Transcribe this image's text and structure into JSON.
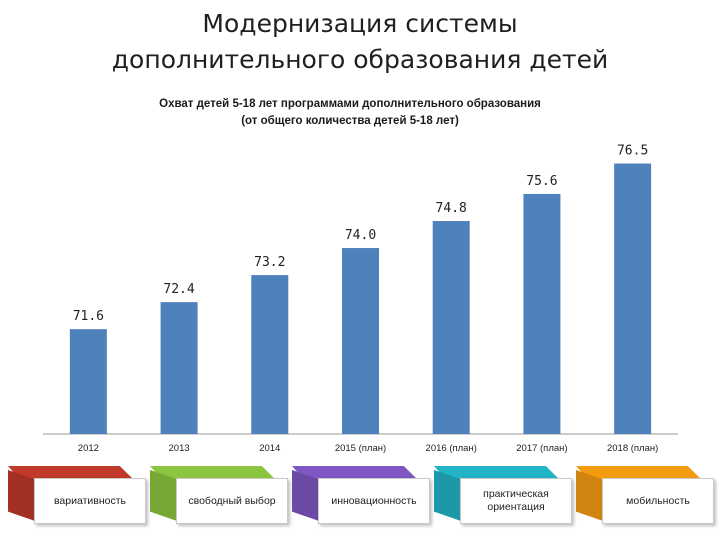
{
  "slide": {
    "title_line1": "Модернизация системы",
    "title_line2": "дополнительного образования детей"
  },
  "chart_data": {
    "type": "bar",
    "title_line1": "Охват детей 5-18 лет программами дополнительного образования",
    "title_line2": "(от общего количества детей 5-18 лет)",
    "categories": [
      "2012",
      "2013",
      "2014",
      "2015 (план)",
      "2016 (план)",
      "2017 (план)",
      "2018 (план)"
    ],
    "values": [
      71.6,
      72.4,
      73.2,
      74.0,
      74.8,
      75.6,
      76.5
    ],
    "value_labels": [
      "71.6",
      "72.4",
      "73.2",
      "74.0",
      "74.8",
      "75.6",
      "76.5"
    ],
    "xlabel": "",
    "ylabel": "",
    "ylim": [
      68.5,
      76.9
    ],
    "grid": false,
    "legend": "none",
    "bar_color": "#4f81bd"
  },
  "tags": [
    {
      "label": "вариативность",
      "color": "#c0392b"
    },
    {
      "label": "свободный выбор",
      "color": "#8cc63f"
    },
    {
      "label": "инновационность",
      "color": "#7e57c2"
    },
    {
      "label": "практическая ориентация",
      "color": "#21b3c6"
    },
    {
      "label": "мобильность",
      "color": "#f39c12"
    }
  ]
}
